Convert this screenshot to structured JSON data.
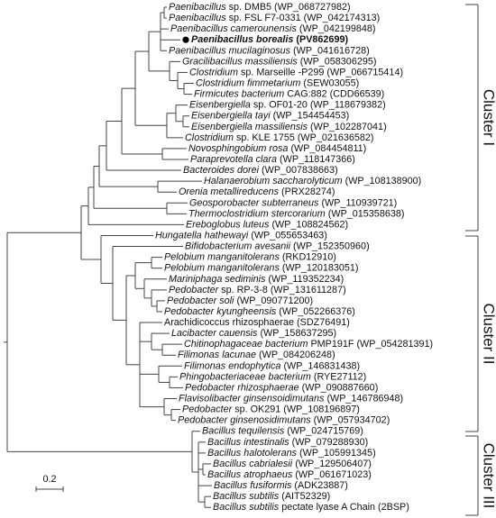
{
  "leaves": [
    {
      "name": "Paenibacillus",
      "rest": "sp. DMB5 (WP_068727982)"
    },
    {
      "name": "Paenibacillus",
      "rest": "sp. FSL F7-0331 (WP_042174313)"
    },
    {
      "name": "Paenibacillus camerounensis",
      "rest": "(WP_042199848)"
    },
    {
      "name": "Paenibacillus borealis",
      "rest": "(PV862699)",
      "bold": true
    },
    {
      "name": "Paenibacillus mucilaginosus",
      "rest": "(WP_041616728)"
    },
    {
      "name": "Gracilibacillus massiliensis",
      "rest": "(WP_058306295)"
    },
    {
      "name": "Clostridium",
      "rest": "sp. Marseille -P299 (WP_066715414)"
    },
    {
      "name": "Clostridium fimmetarium",
      "rest": "(SEW03055)"
    },
    {
      "name": "Firmicutes bacterium",
      "rest": "CAG:882 (CDD66539)"
    },
    {
      "name": "Eisenbergiella",
      "rest": "sp. OF01-20 (WP_118679382)"
    },
    {
      "name": "Eisenbergiella tayi",
      "rest": "(WP_154454453)"
    },
    {
      "name": "Eisenbergiella massiliensis",
      "rest": "(WP_102287041)"
    },
    {
      "name": "Clostridium",
      "rest": "sp. KLE 1755 (WP_021636582)"
    },
    {
      "name": "Novosphingobium rosa",
      "rest": "(WP_084454811)"
    },
    {
      "name": "Paraprevotella clara",
      "rest": "(WP_118147366)"
    },
    {
      "name": "Bacteroides dorei",
      "rest": "(WP_007838663)"
    },
    {
      "name": "Halanaerobium saccharolyticum",
      "rest": "(WP_108138900)"
    },
    {
      "name": "Orenia metallireducens",
      "rest": "(PRX28274)"
    },
    {
      "name": "Geosporobacter subterraneus",
      "rest": "(WP_110939721)"
    },
    {
      "name": "Thermoclostridium stercorarium",
      "rest": "(WP_015358638)"
    },
    {
      "name": "Ereboglobus luteus",
      "rest": "(WP_108824562)"
    },
    {
      "name": "Hungatella hathewayi",
      "rest": "(WP_055653463)"
    },
    {
      "name": "Bifidobacterium avesanii",
      "rest": "(WP_152350960)"
    },
    {
      "name": "Pelobium manganitolerans",
      "rest": "(RKD12910)"
    },
    {
      "name": "Pelobium manganitolerans",
      "rest": "(WP_120183051)"
    },
    {
      "name": "Mariniphaga sediminis",
      "rest": "(WP_119352234)"
    },
    {
      "name": "Pedobacter",
      "rest": "sp. RP-3-8 (WP_131611287)"
    },
    {
      "name": "Pedobacter soli",
      "rest": "(WP_090771200)"
    },
    {
      "name": "Pedobacter kyungheensis",
      "rest": "(WP_052266376)"
    },
    {
      "name": "Arachidicoccus rhizosphaerae",
      "rest": "(SDZ76491)",
      "italic": false
    },
    {
      "name": "Lacibacter cauensis",
      "rest": "(WP_158637295)"
    },
    {
      "name": "Chitinophagaceae bacterium",
      "rest": "PMP191F (WP_054281391)"
    },
    {
      "name": "Filimonas lacunae",
      "rest": "(WP_084206248)"
    },
    {
      "name": "Filimonas endophytica",
      "rest": "(WP_146831438)"
    },
    {
      "name": "Phingobacteriaceae bacterium",
      "rest": "(RYE27112)"
    },
    {
      "name": "Pedobacter rhizosphaerae",
      "rest": "(WP_090887660)"
    },
    {
      "name": "Flavisolibacter ginsensoidimutans",
      "rest": "(WP_146786948)"
    },
    {
      "name": "Pedobacter",
      "rest": "sp. OK291 (WP_108196897)"
    },
    {
      "name": "Pedobacter ginsenosidimutans",
      "rest": "(WP_057934702)"
    },
    {
      "name": "Bacillus tequilensis",
      "rest": "(WP_024715769)"
    },
    {
      "name": "Bacillus intestinalis",
      "rest": "(WP_079288930)"
    },
    {
      "name": "Bacillus halotolerans",
      "rest": "(WP_105991345)"
    },
    {
      "name": "Bacillus cabrialesii",
      "rest": "(WP_129506407)"
    },
    {
      "name": "Bacillus atrophaeus",
      "rest": "(WP_061671023)"
    },
    {
      "name": "Bacillus fusiformis",
      "rest": "(ADK23887)"
    },
    {
      "name": "Bacillus subtilis",
      "rest": "(AIT52329)"
    },
    {
      "name": "Bacillus subtilis",
      "rest": "pectate lyase A Chain (2BSP)"
    }
  ],
  "clusters": [
    {
      "label": "Cluster I"
    },
    {
      "label": "Cluster II"
    },
    {
      "label": "Cluster III"
    }
  ],
  "scale_bar": {
    "label": "0.2"
  }
}
